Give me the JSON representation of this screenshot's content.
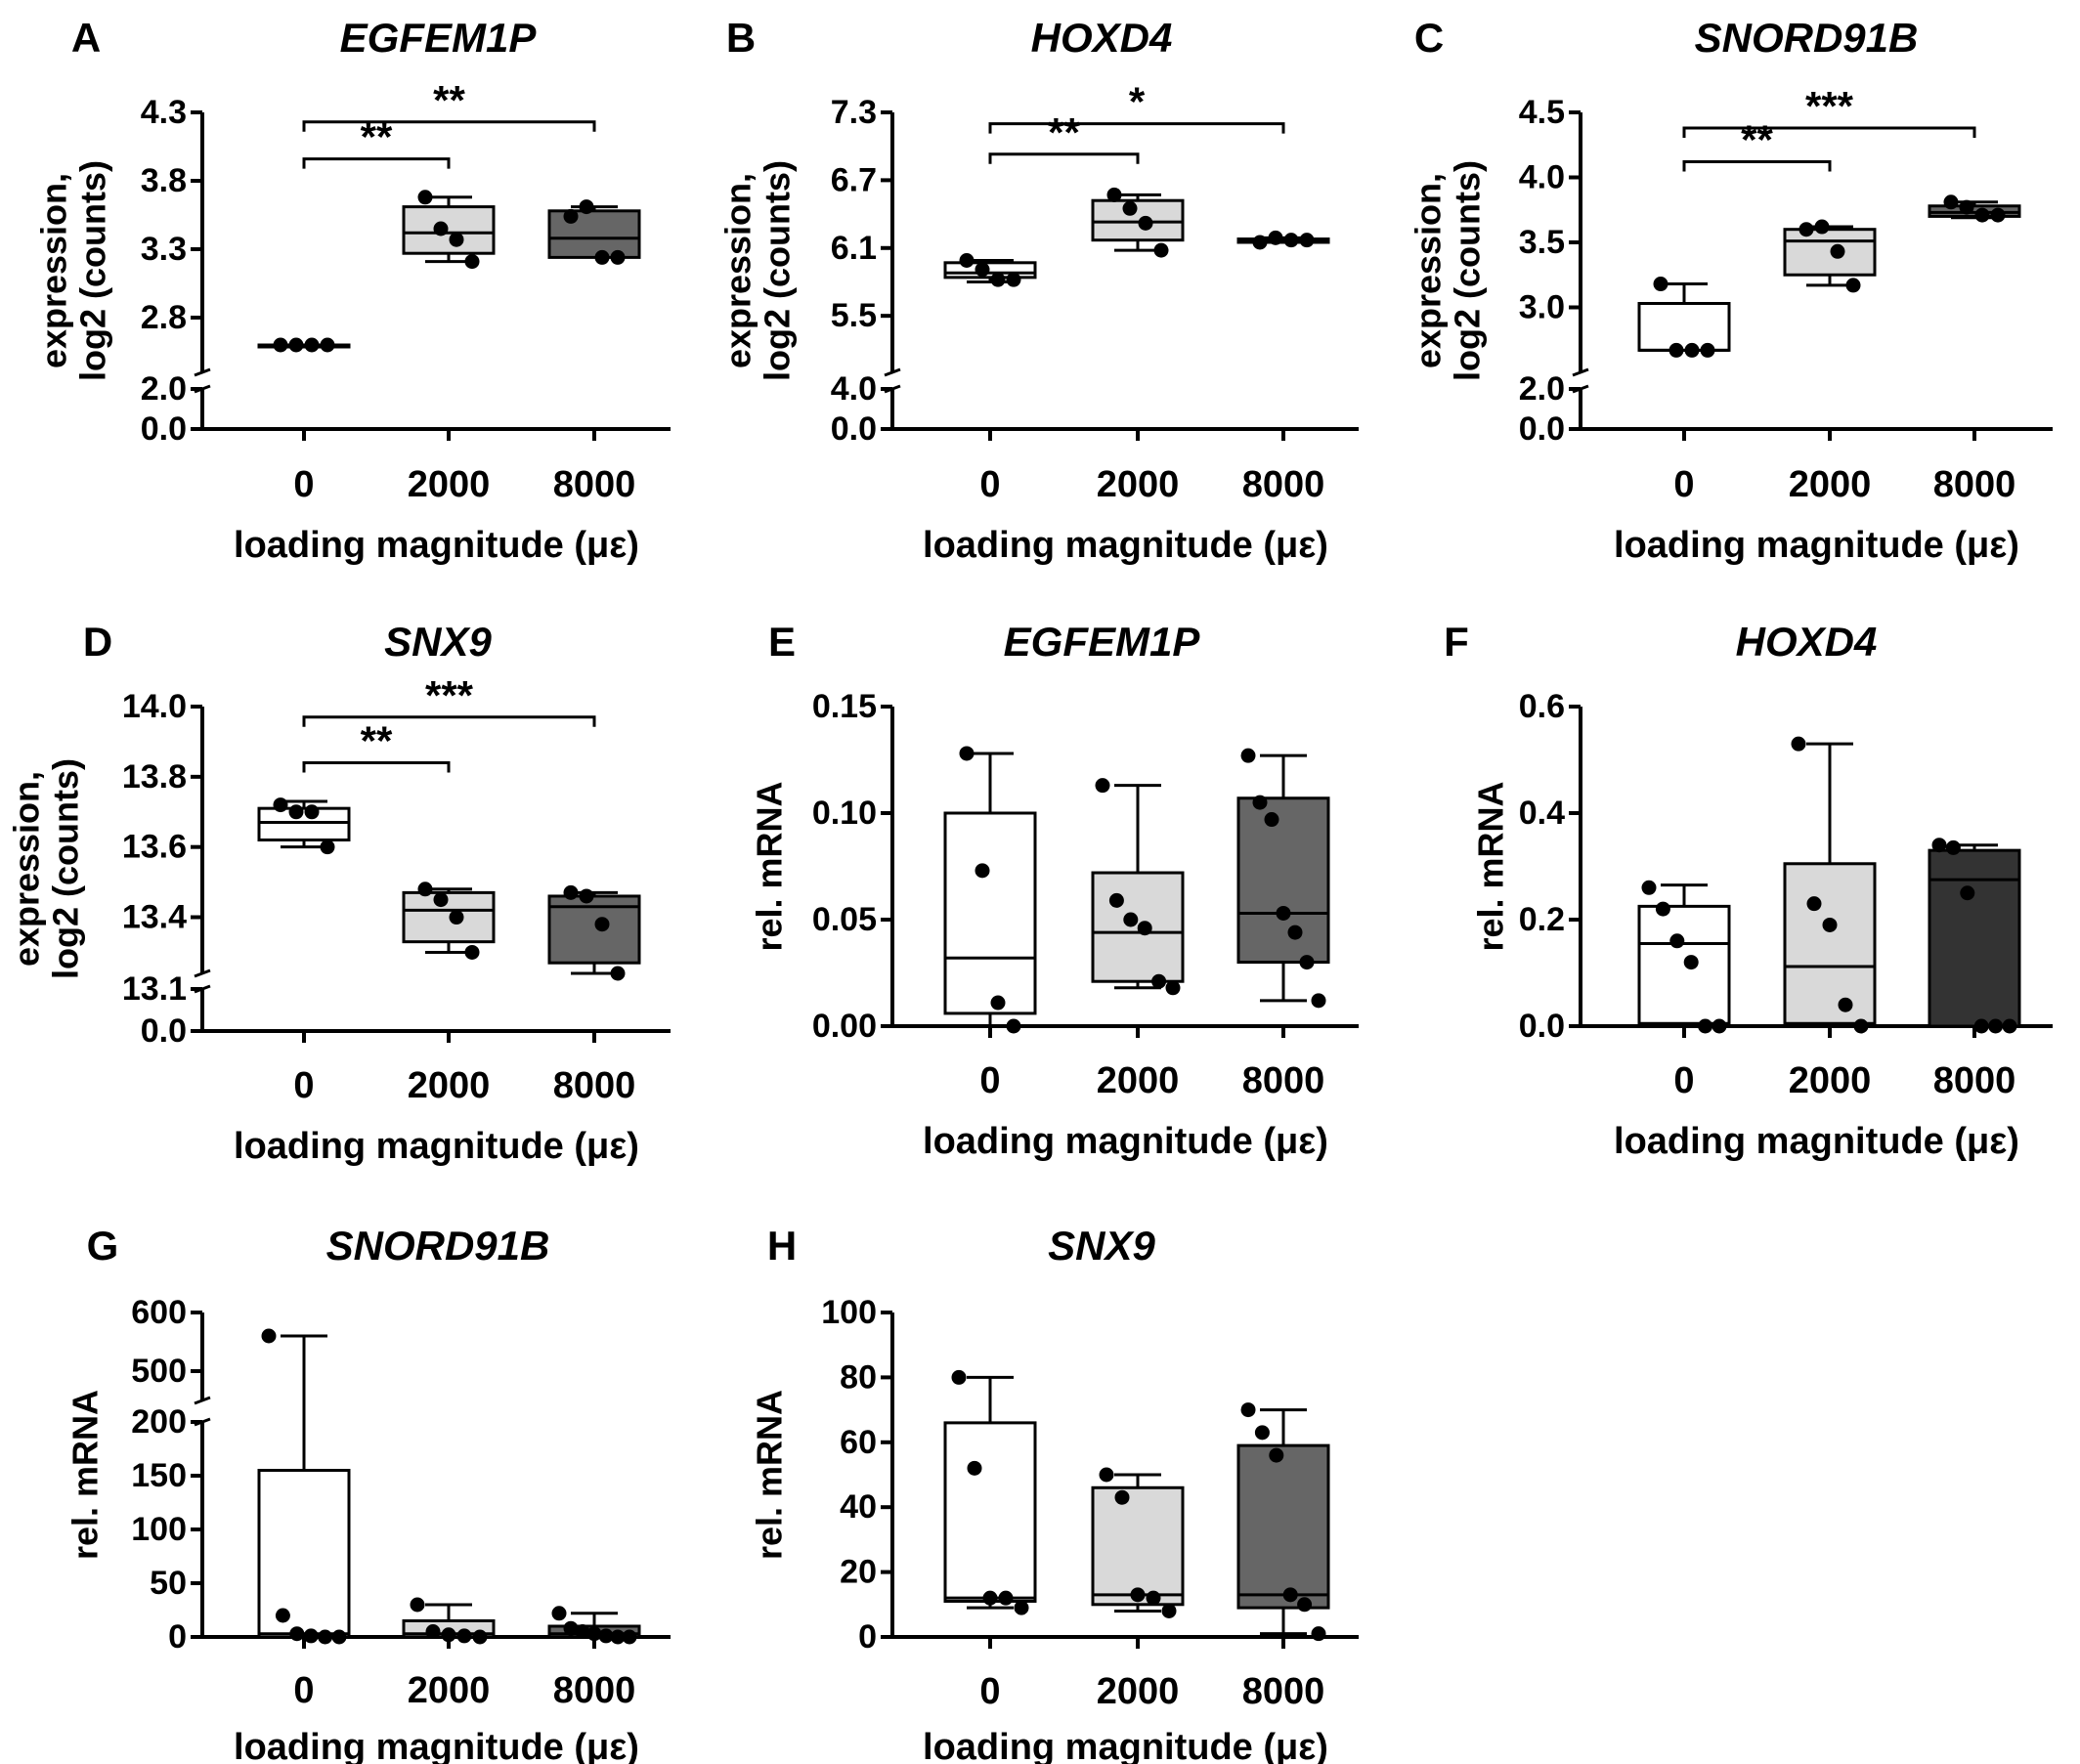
{
  "figure": {
    "xlabel": "loading magnitude (με)",
    "categories": [
      "0",
      "2000",
      "8000"
    ]
  },
  "chart_data": [
    {
      "panel": "A",
      "title": "EGFEM1P",
      "type": "box",
      "ylabel": [
        "expression,",
        "log2 (counts)"
      ],
      "xlabel": "loading magnitude (με)",
      "categories": [
        "0",
        "2000",
        "8000"
      ],
      "ylim": [
        0,
        4.3
      ],
      "y_break": [
        2.0,
        2.4
      ],
      "yticks": [
        0.0,
        2.0,
        2.8,
        3.3,
        3.8,
        4.3
      ],
      "ytick_labels": [
        "0.0",
        "2.0",
        "2.8",
        "3.3",
        "3.8",
        "4.3"
      ],
      "groups": [
        {
          "category": "0",
          "fill": "#ffffff",
          "min": 2.6,
          "q1": 2.6,
          "median": 2.6,
          "q3": 2.6,
          "max": 2.6,
          "points": [
            2.6,
            2.6,
            2.6,
            2.6
          ]
        },
        {
          "category": "2000",
          "fill": "#d9d9d9",
          "min": 3.21,
          "q1": 3.27,
          "median": 3.42,
          "q3": 3.61,
          "max": 3.68,
          "points": [
            3.68,
            3.45,
            3.37,
            3.21
          ]
        },
        {
          "category": "8000",
          "fill": "#666666",
          "min": 3.24,
          "q1": 3.24,
          "median": 3.38,
          "q3": 3.58,
          "max": 3.61,
          "points": [
            3.54,
            3.61,
            3.24,
            3.24
          ]
        }
      ],
      "brackets": [
        {
          "from": 0,
          "to": 1,
          "y": 3.96,
          "label": "**"
        },
        {
          "from": 0,
          "to": 2,
          "y": 4.23,
          "label": "**"
        }
      ]
    },
    {
      "panel": "B",
      "title": "HOXD4",
      "type": "box",
      "ylabel": [
        "expression,",
        "log2 (counts)"
      ],
      "xlabel": "loading magnitude (με)",
      "categories": [
        "0",
        "2000",
        "8000"
      ],
      "ylim": [
        0,
        7.3
      ],
      "y_break": [
        4.0,
        5.0
      ],
      "yticks": [
        0.0,
        4.0,
        5.5,
        6.1,
        6.7,
        7.3
      ],
      "ytick_labels": [
        "0.0",
        "4.0",
        "5.5",
        "6.1",
        "6.7",
        "7.3"
      ],
      "groups": [
        {
          "category": "0",
          "fill": "#ffffff",
          "min": 5.8,
          "q1": 5.84,
          "median": 5.88,
          "q3": 5.97,
          "max": 5.99,
          "points": [
            5.99,
            5.91,
            5.82,
            5.82
          ]
        },
        {
          "category": "2000",
          "fill": "#d9d9d9",
          "min": 6.08,
          "q1": 6.17,
          "median": 6.33,
          "q3": 6.52,
          "max": 6.57,
          "points": [
            6.57,
            6.45,
            6.32,
            6.08
          ]
        },
        {
          "category": "8000",
          "fill": "#666666",
          "min": 6.15,
          "q1": 6.15,
          "median": 6.17,
          "q3": 6.18,
          "max": 6.19,
          "points": [
            6.15,
            6.19,
            6.17,
            6.17
          ]
        }
      ],
      "brackets": [
        {
          "from": 0,
          "to": 1,
          "y": 6.93,
          "label": "**"
        },
        {
          "from": 0,
          "to": 2,
          "y": 7.2,
          "label": "*"
        }
      ]
    },
    {
      "panel": "C",
      "title": "SNORD91B",
      "type": "box",
      "ylabel": [
        "expression,",
        "log2 (counts)"
      ],
      "xlabel": "loading magnitude (με)",
      "categories": [
        "0",
        "2000",
        "8000"
      ],
      "ylim": [
        0,
        4.5
      ],
      "y_break": [
        2.0,
        2.5
      ],
      "yticks": [
        0.0,
        2.0,
        3.0,
        3.5,
        4.0,
        4.5
      ],
      "ytick_labels": [
        "0.0",
        "2.0",
        "3.0",
        "3.5",
        "4.0",
        "4.5"
      ],
      "groups": [
        {
          "category": "0",
          "fill": "#ffffff",
          "min": 2.67,
          "q1": 2.67,
          "median": 2.67,
          "q3": 3.03,
          "max": 3.18,
          "points": [
            3.18,
            2.67,
            2.67,
            2.67
          ]
        },
        {
          "category": "2000",
          "fill": "#d9d9d9",
          "min": 3.17,
          "q1": 3.25,
          "median": 3.51,
          "q3": 3.6,
          "max": 3.62,
          "points": [
            3.6,
            3.62,
            3.43,
            3.17
          ]
        },
        {
          "category": "8000",
          "fill": "#666666",
          "min": 3.69,
          "q1": 3.7,
          "median": 3.73,
          "q3": 3.78,
          "max": 3.81,
          "points": [
            3.81,
            3.77,
            3.71,
            3.71
          ]
        }
      ],
      "brackets": [
        {
          "from": 0,
          "to": 1,
          "y": 4.12,
          "label": "**"
        },
        {
          "from": 0,
          "to": 2,
          "y": 4.38,
          "label": "***"
        }
      ]
    },
    {
      "panel": "D",
      "title": "SNX9",
      "type": "box",
      "ylabel": [
        "expression,",
        "log2 (counts)"
      ],
      "xlabel": "loading magnitude (με)",
      "categories": [
        "0",
        "2000",
        "8000"
      ],
      "ylim": [
        0,
        14.0
      ],
      "y_break": [
        13.1,
        13.24
      ],
      "yticks": [
        0.0,
        13.1,
        13.4,
        13.6,
        13.8,
        14.0
      ],
      "ytick_labels": [
        "0.0",
        "13.1",
        "13.4",
        "13.6",
        "13.8",
        "14.0"
      ],
      "groups": [
        {
          "category": "0",
          "fill": "#ffffff",
          "min": 13.6,
          "q1": 13.62,
          "median": 13.67,
          "q3": 13.71,
          "max": 13.73,
          "points": [
            13.72,
            13.7,
            13.7,
            13.6
          ]
        },
        {
          "category": "2000",
          "fill": "#d9d9d9",
          "min": 13.3,
          "q1": 13.33,
          "median": 13.42,
          "q3": 13.47,
          "max": 13.48,
          "points": [
            13.48,
            13.45,
            13.4,
            13.3
          ]
        },
        {
          "category": "8000",
          "fill": "#666666",
          "min": 13.22,
          "q1": 13.27,
          "median": 13.43,
          "q3": 13.46,
          "max": 13.47,
          "points": [
            13.47,
            13.46,
            13.38,
            13.22
          ]
        }
      ],
      "brackets": [
        {
          "from": 0,
          "to": 1,
          "y": 13.84,
          "label": "**"
        },
        {
          "from": 0,
          "to": 2,
          "y": 13.97,
          "label": "***"
        }
      ]
    },
    {
      "panel": "E",
      "title": "EGFEM1P",
      "type": "box",
      "ylabel": [
        "rel. mRNA"
      ],
      "xlabel": "loading magnitude (με)",
      "categories": [
        "0",
        "2000",
        "8000"
      ],
      "ylim": [
        0,
        0.15
      ],
      "yticks": [
        0.0,
        0.05,
        0.1,
        0.15
      ],
      "ytick_labels": [
        "0.00",
        "0.05",
        "0.10",
        "0.15"
      ],
      "groups": [
        {
          "category": "0",
          "fill": "#ffffff",
          "min": 0.0,
          "q1": 0.006,
          "median": 0.032,
          "q3": 0.1,
          "max": 0.128,
          "points": [
            0.128,
            0.073,
            0.011,
            0.0
          ]
        },
        {
          "category": "2000",
          "fill": "#d9d9d9",
          "min": 0.018,
          "q1": 0.021,
          "median": 0.044,
          "q3": 0.072,
          "max": 0.113,
          "points": [
            0.113,
            0.059,
            0.05,
            0.046,
            0.021,
            0.018
          ]
        },
        {
          "category": "8000",
          "fill": "#666666",
          "min": 0.012,
          "q1": 0.03,
          "median": 0.053,
          "q3": 0.107,
          "max": 0.127,
          "points": [
            0.127,
            0.105,
            0.097,
            0.053,
            0.044,
            0.03,
            0.012
          ]
        }
      ],
      "brackets": []
    },
    {
      "panel": "F",
      "title": "HOXD4",
      "type": "box",
      "ylabel": [
        "rel. mRNA"
      ],
      "xlabel": "loading magnitude (με)",
      "categories": [
        "0",
        "2000",
        "8000"
      ],
      "ylim": [
        0,
        0.6
      ],
      "yticks": [
        0.0,
        0.2,
        0.4,
        0.6
      ],
      "ytick_labels": [
        "0.0",
        "0.2",
        "0.4",
        "0.6"
      ],
      "groups": [
        {
          "category": "0",
          "fill": "#ffffff",
          "min": 0.0,
          "q1": 0.005,
          "median": 0.155,
          "q3": 0.225,
          "max": 0.265,
          "points": [
            0.26,
            0.22,
            0.16,
            0.12,
            0.0,
            0.0
          ]
        },
        {
          "category": "2000",
          "fill": "#d9d9d9",
          "min": 0.0,
          "q1": 0.005,
          "median": 0.112,
          "q3": 0.305,
          "max": 0.53,
          "points": [
            0.53,
            0.23,
            0.19,
            0.04,
            0.0
          ]
        },
        {
          "category": "8000",
          "fill": "#333333",
          "min": 0.0,
          "q1": 0.0,
          "median": 0.275,
          "q3": 0.33,
          "max": 0.34,
          "points": [
            0.34,
            0.335,
            0.25,
            0.0,
            0.0,
            0.0
          ]
        }
      ],
      "brackets": []
    },
    {
      "panel": "G",
      "title": "SNORD91B",
      "type": "box",
      "ylabel": [
        "rel. mRNA"
      ],
      "xlabel": "loading magnitude (με)",
      "categories": [
        "0",
        "2000",
        "8000"
      ],
      "ylim": [
        0,
        600
      ],
      "y_break": [
        200,
        450
      ],
      "yticks": [
        0,
        50,
        100,
        150,
        200,
        500,
        600
      ],
      "ytick_labels": [
        "0",
        "50",
        "100",
        "150",
        "200",
        "500",
        "600"
      ],
      "groups": [
        {
          "category": "0",
          "fill": "#ffffff",
          "min": 0,
          "q1": 0,
          "median": 3,
          "q3": 155,
          "max": 560,
          "points": [
            560,
            20,
            3,
            1,
            0,
            0
          ]
        },
        {
          "category": "2000",
          "fill": "#d9d9d9",
          "min": 0,
          "q1": 0,
          "median": 3,
          "q3": 15,
          "max": 30,
          "points": [
            30,
            5,
            2,
            1,
            0
          ]
        },
        {
          "category": "8000",
          "fill": "#666666",
          "min": 0,
          "q1": 0,
          "median": 3,
          "q3": 10,
          "max": 22,
          "points": [
            22,
            8,
            5,
            3,
            1,
            0,
            0
          ]
        }
      ],
      "brackets": []
    },
    {
      "panel": "H",
      "title": "SNX9",
      "type": "box",
      "ylabel": [
        "rel. mRNA"
      ],
      "xlabel": "loading magnitude (με)",
      "categories": [
        "0",
        "2000",
        "8000"
      ],
      "ylim": [
        0,
        100
      ],
      "yticks": [
        0,
        20,
        40,
        60,
        80,
        100
      ],
      "ytick_labels": [
        "0",
        "20",
        "40",
        "60",
        "80",
        "100"
      ],
      "groups": [
        {
          "category": "0",
          "fill": "#ffffff",
          "min": 9,
          "q1": 11,
          "median": 12,
          "q3": 66,
          "max": 80,
          "points": [
            80,
            52,
            12,
            12,
            9
          ]
        },
        {
          "category": "2000",
          "fill": "#d9d9d9",
          "min": 8,
          "q1": 10,
          "median": 13,
          "q3": 46,
          "max": 50,
          "points": [
            50,
            43,
            13,
            12,
            8
          ]
        },
        {
          "category": "8000",
          "fill": "#666666",
          "min": 1,
          "q1": 9,
          "median": 13,
          "q3": 59,
          "max": 70,
          "points": [
            70,
            63,
            56,
            13,
            10,
            1
          ]
        }
      ],
      "brackets": []
    }
  ]
}
